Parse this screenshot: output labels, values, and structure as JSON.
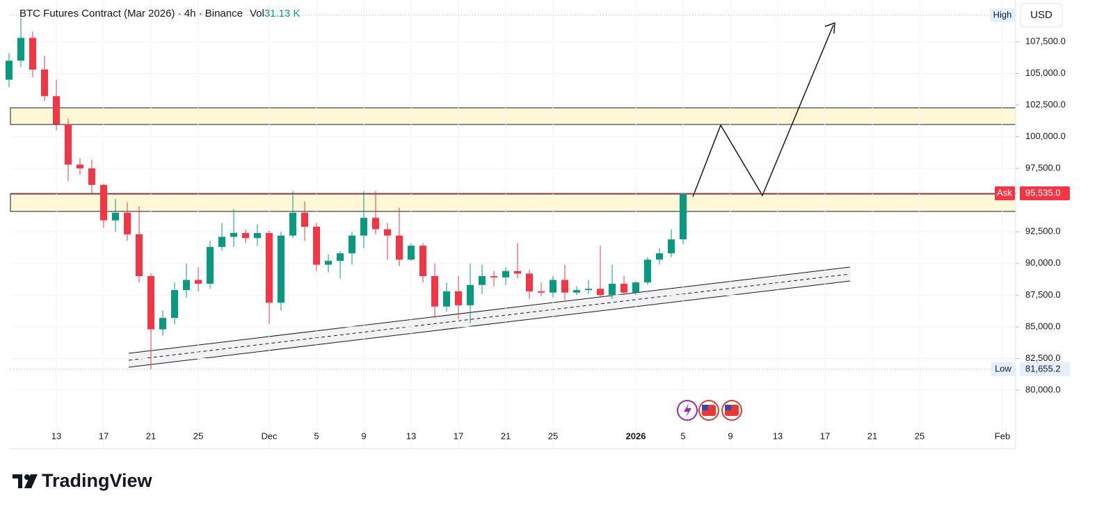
{
  "chart_data": {
    "type": "candlestick",
    "title": "BTC Futures Contract (Mar 2026) · 4h · Binance",
    "volume_label": "Vol",
    "volume_value": "31.13 K",
    "currency": "USD",
    "categories": [
      null,
      null,
      null,
      null,
      "13",
      null,
      null,
      null,
      "17",
      null,
      null,
      null,
      "21",
      null,
      null,
      null,
      "25",
      null,
      null,
      null,
      null,
      null,
      "Dec",
      null,
      null,
      null,
      "5",
      null,
      null,
      null,
      "9",
      null,
      null,
      null,
      "13",
      null,
      null,
      null,
      "17",
      null,
      null,
      null,
      "21",
      null,
      null,
      null,
      "25",
      null,
      null,
      null,
      null,
      null,
      null,
      "2026",
      null,
      null,
      null,
      "5",
      null,
      null,
      null,
      "9",
      null,
      null,
      null,
      "13",
      null,
      null,
      null,
      "17",
      null,
      null,
      null,
      "21",
      null,
      null,
      null,
      "25",
      null,
      null,
      null,
      null,
      null,
      null,
      "Feb"
    ],
    "open": [
      104500,
      106000,
      107800,
      105300,
      103200,
      101000,
      97800,
      97500,
      96200,
      93400,
      94000,
      92300,
      89000,
      84800,
      85700,
      87900,
      88700,
      88400,
      91300,
      92100,
      92400,
      92000,
      92400,
      86900,
      92200,
      94000,
      92900,
      89900,
      90200,
      90800,
      92200,
      93600,
      92700,
      92200,
      90300,
      91400,
      89000,
      86600,
      87800,
      86700,
      88300,
      89000,
      88900,
      89400,
      89200,
      87800,
      87700,
      88700,
      87700,
      87900,
      88000,
      87500,
      88400,
      87700,
      88500,
      90300,
      90800,
      91900,
      null,
      null,
      null,
      null,
      null,
      null,
      null,
      null,
      null,
      null,
      null,
      null,
      null,
      null,
      null,
      null,
      null,
      null,
      null,
      null,
      null,
      null,
      null,
      null,
      null,
      null,
      null
    ],
    "high": [
      106600,
      109400,
      108300,
      106400,
      104500,
      101400,
      98300,
      98200,
      96300,
      95100,
      94800,
      94500,
      89200,
      86300,
      88500,
      90000,
      89700,
      91800,
      93200,
      94300,
      92700,
      93100,
      92600,
      92500,
      95700,
      94900,
      93200,
      90700,
      91000,
      92500,
      95700,
      95700,
      93200,
      94400,
      91600,
      91600,
      90000,
      88500,
      89000,
      90000,
      89900,
      89400,
      89700,
      91600,
      89500,
      88500,
      89000,
      89900,
      88200,
      88700,
      91400,
      89900,
      89000,
      88600,
      90500,
      91200,
      92700,
      95535,
      null,
      null,
      null,
      null,
      null,
      null,
      null,
      null,
      null,
      null,
      null,
      null,
      null,
      null,
      null,
      null,
      null,
      null,
      null,
      null,
      null,
      null,
      null,
      null,
      null,
      null,
      null
    ],
    "low": [
      103900,
      105500,
      104700,
      102800,
      100500,
      96500,
      97000,
      95500,
      92800,
      92500,
      91800,
      88500,
      81655,
      84300,
      85200,
      87300,
      87800,
      88000,
      91000,
      91300,
      91600,
      91400,
      85200,
      86300,
      92000,
      91800,
      89400,
      89300,
      88800,
      89900,
      91200,
      92300,
      90300,
      89800,
      90200,
      88500,
      85700,
      86200,
      85600,
      85270,
      87600,
      88200,
      88300,
      88800,
      87200,
      87400,
      87300,
      87100,
      87500,
      87600,
      87300,
      87200,
      87500,
      87500,
      88300,
      89900,
      90500,
      91500,
      null,
      null,
      null,
      null,
      null,
      null,
      null,
      null,
      null,
      null,
      null,
      null,
      null,
      null,
      null,
      null,
      null,
      null,
      null,
      null,
      null,
      null,
      null,
      null,
      null,
      null,
      null
    ],
    "close": [
      106000,
      107800,
      105300,
      103200,
      101000,
      97800,
      97500,
      96200,
      93400,
      94000,
      92300,
      89000,
      84800,
      85700,
      87900,
      88700,
      88400,
      91300,
      92100,
      92400,
      92000,
      92400,
      86900,
      92200,
      94000,
      92900,
      89900,
      90200,
      90800,
      92200,
      93600,
      92700,
      92200,
      90300,
      91400,
      89000,
      86600,
      87800,
      86700,
      88300,
      89000,
      88900,
      89400,
      89200,
      87800,
      87700,
      88700,
      87700,
      87900,
      88000,
      87500,
      88400,
      87700,
      88500,
      90300,
      90800,
      91900,
      95535,
      null,
      null,
      null,
      null,
      null,
      null,
      null,
      null,
      null,
      null,
      null,
      null,
      null,
      null,
      null,
      null,
      null,
      null,
      null,
      null,
      null,
      null,
      null,
      null,
      null,
      null,
      null
    ],
    "up_color": "#089981",
    "down_color": "#f23645",
    "ylim": [
      75390,
      110790
    ],
    "yticks": [
      {
        "value": 80000,
        "label": "80,000.0"
      },
      {
        "value": 82500,
        "label": "82,500.0"
      },
      {
        "value": 85000,
        "label": "85,000.0"
      },
      {
        "value": 87500,
        "label": "87,500.0"
      },
      {
        "value": 90000,
        "label": "90,000.0"
      },
      {
        "value": 92500,
        "label": "92,500.0"
      },
      {
        "value": 97500,
        "label": "97,500.0"
      },
      {
        "value": 100000,
        "label": "100,000.0"
      },
      {
        "value": 102500,
        "label": "102,500.0"
      },
      {
        "value": 105000,
        "label": "105,000.0"
      },
      {
        "value": 107500,
        "label": "107,500.0"
      }
    ],
    "grid": true,
    "high_marker": {
      "label": "High",
      "value": 109590
    },
    "low_marker": {
      "label": "Low",
      "value": 81655.2,
      "value_label": "81,655.2"
    },
    "ask_marker": {
      "label": "Ask",
      "value": 95535,
      "value_label": "95,535.0"
    },
    "brand": "TradingView"
  }
}
